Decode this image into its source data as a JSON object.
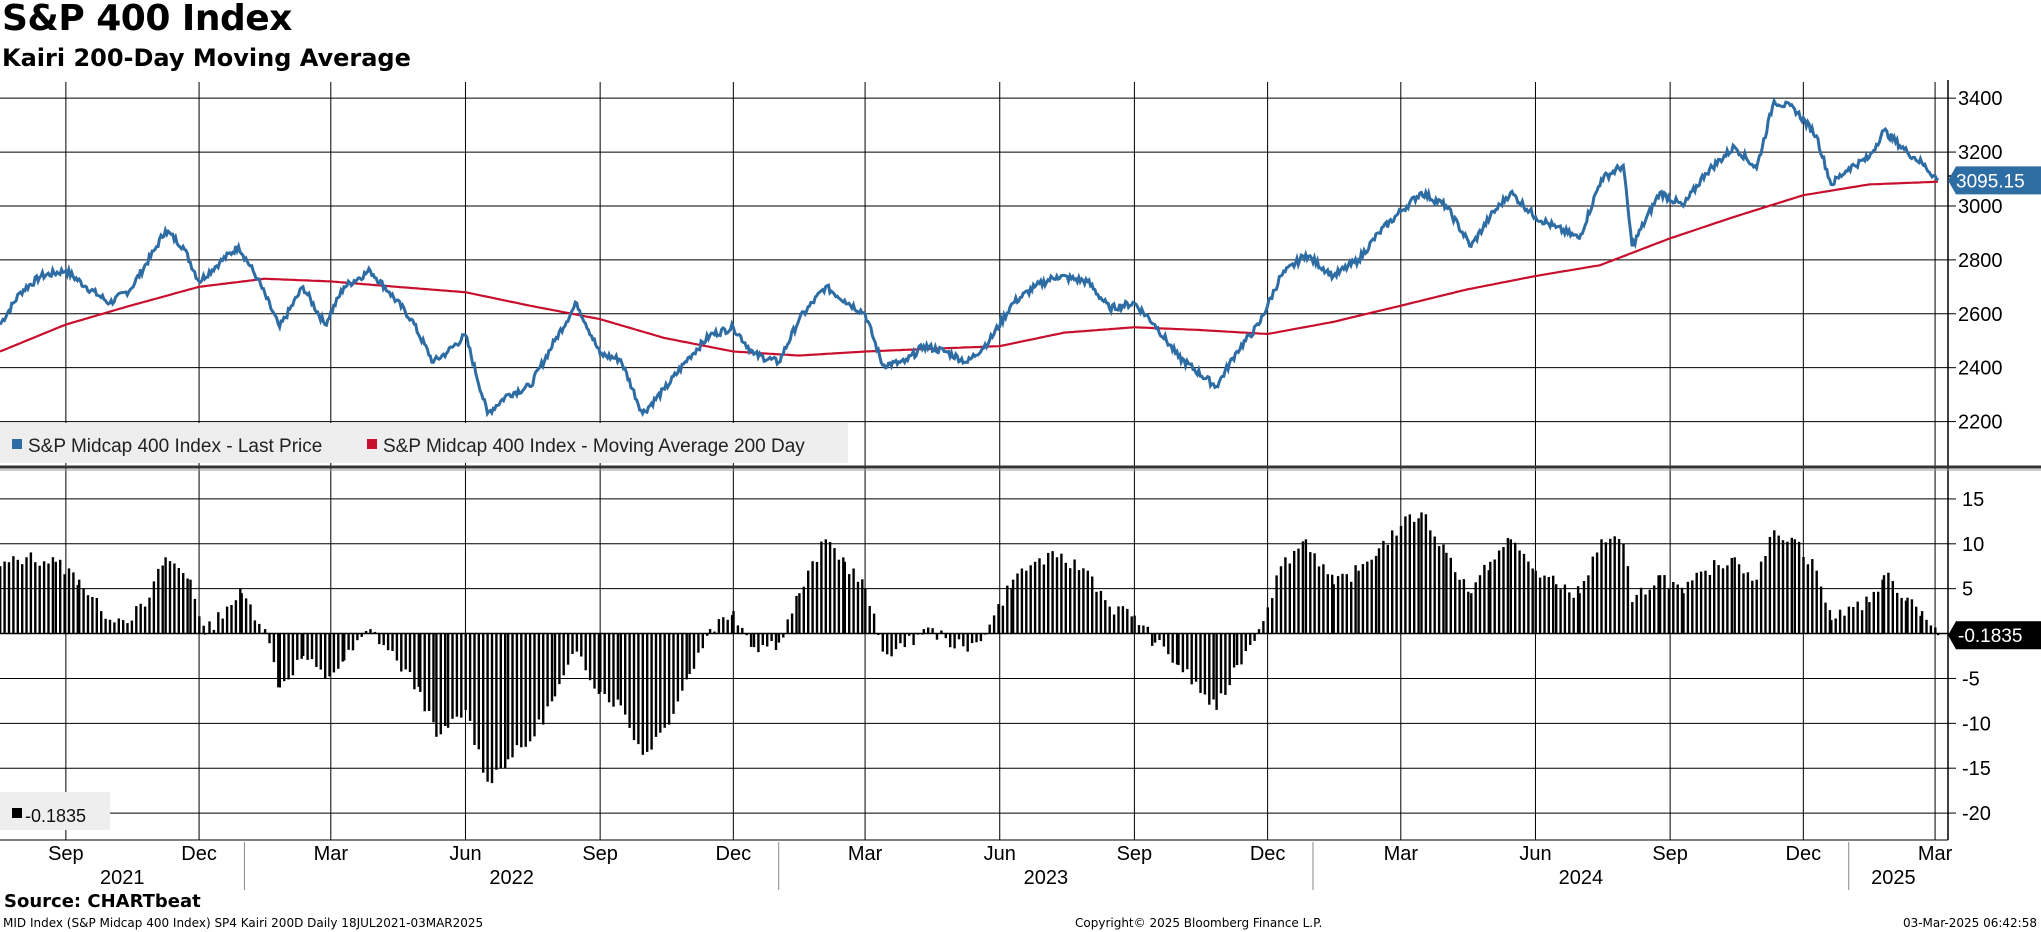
{
  "header": {
    "title": "S&P 400 Index",
    "subtitle": "Kairi 200-Day Moving Average"
  },
  "chart_data": [
    {
      "type": "line",
      "panel": "top",
      "ylim": [
        2050,
        3460
      ],
      "yticks": [
        2200,
        2400,
        2600,
        2800,
        3000,
        3200,
        3400
      ],
      "series": [
        {
          "name": "S&P Midcap 400 Index - Last Price",
          "color": "#2e6ca4",
          "last_value": "3095.15",
          "points": [
            [
              "2021-07-18",
              2560
            ],
            [
              "2021-08-01",
              2680
            ],
            [
              "2021-08-15",
              2740
            ],
            [
              "2021-09-01",
              2760
            ],
            [
              "2021-09-15",
              2700
            ],
            [
              "2021-10-01",
              2640
            ],
            [
              "2021-10-15",
              2690
            ],
            [
              "2021-11-01",
              2840
            ],
            [
              "2021-11-08",
              2910
            ],
            [
              "2021-11-20",
              2850
            ],
            [
              "2021-12-01",
              2720
            ],
            [
              "2021-12-15",
              2790
            ],
            [
              "2021-12-28",
              2850
            ],
            [
              "2022-01-10",
              2730
            ],
            [
              "2022-01-25",
              2550
            ],
            [
              "2022-02-10",
              2700
            ],
            [
              "2022-02-25",
              2560
            ],
            [
              "2022-03-10",
              2700
            ],
            [
              "2022-03-28",
              2760
            ],
            [
              "2022-04-10",
              2680
            ],
            [
              "2022-04-25",
              2580
            ],
            [
              "2022-05-10",
              2420
            ],
            [
              "2022-05-20",
              2460
            ],
            [
              "2022-06-01",
              2520
            ],
            [
              "2022-06-16",
              2230
            ],
            [
              "2022-06-30",
              2300
            ],
            [
              "2022-07-15",
              2330
            ],
            [
              "2022-08-01",
              2500
            ],
            [
              "2022-08-16",
              2640
            ],
            [
              "2022-09-01",
              2450
            ],
            [
              "2022-09-15",
              2430
            ],
            [
              "2022-09-30",
              2230
            ],
            [
              "2022-10-15",
              2320
            ],
            [
              "2022-11-01",
              2440
            ],
            [
              "2022-11-15",
              2520
            ],
            [
              "2022-12-01",
              2550
            ],
            [
              "2022-12-15",
              2450
            ],
            [
              "2023-01-01",
              2420
            ],
            [
              "2023-01-15",
              2580
            ],
            [
              "2023-02-02",
              2700
            ],
            [
              "2023-02-15",
              2650
            ],
            [
              "2023-03-01",
              2600
            ],
            [
              "2023-03-13",
              2410
            ],
            [
              "2023-03-28",
              2420
            ],
            [
              "2023-04-10",
              2480
            ],
            [
              "2023-04-25",
              2460
            ],
            [
              "2023-05-10",
              2420
            ],
            [
              "2023-05-25",
              2500
            ],
            [
              "2023-06-10",
              2640
            ],
            [
              "2023-06-25",
              2700
            ],
            [
              "2023-07-10",
              2740
            ],
            [
              "2023-07-31",
              2720
            ],
            [
              "2023-08-15",
              2620
            ],
            [
              "2023-09-01",
              2640
            ],
            [
              "2023-09-15",
              2560
            ],
            [
              "2023-10-01",
              2440
            ],
            [
              "2023-10-27",
              2330
            ],
            [
              "2023-11-10",
              2460
            ],
            [
              "2023-11-25",
              2560
            ],
            [
              "2023-12-10",
              2740
            ],
            [
              "2023-12-27",
              2820
            ],
            [
              "2024-01-15",
              2740
            ],
            [
              "2024-02-01",
              2800
            ],
            [
              "2024-02-15",
              2900
            ],
            [
              "2024-03-01",
              2980
            ],
            [
              "2024-03-15",
              3050
            ],
            [
              "2024-04-01",
              3000
            ],
            [
              "2024-04-18",
              2850
            ],
            [
              "2024-05-01",
              2960
            ],
            [
              "2024-05-15",
              3050
            ],
            [
              "2024-06-01",
              2960
            ],
            [
              "2024-06-15",
              2920
            ],
            [
              "2024-07-01",
              2880
            ],
            [
              "2024-07-16",
              3100
            ],
            [
              "2024-07-31",
              3150
            ],
            [
              "2024-08-06",
              2850
            ],
            [
              "2024-08-25",
              3050
            ],
            [
              "2024-09-10",
              3000
            ],
            [
              "2024-09-25",
              3120
            ],
            [
              "2024-10-15",
              3220
            ],
            [
              "2024-10-30",
              3140
            ],
            [
              "2024-11-11",
              3390
            ],
            [
              "2024-11-25",
              3360
            ],
            [
              "2024-12-10",
              3260
            ],
            [
              "2024-12-20",
              3080
            ],
            [
              "2025-01-01",
              3140
            ],
            [
              "2025-01-15",
              3180
            ],
            [
              "2025-01-25",
              3280
            ],
            [
              "2025-02-10",
              3200
            ],
            [
              "2025-02-20",
              3160
            ],
            [
              "2025-03-03",
              3095.15
            ]
          ]
        },
        {
          "name": "S&P Midcap 400 Index - Moving Average 200 Day",
          "color": "#c8102e",
          "points": [
            [
              "2021-07-18",
              2460
            ],
            [
              "2021-09-01",
              2560
            ],
            [
              "2021-10-15",
              2630
            ],
            [
              "2021-12-01",
              2700
            ],
            [
              "2022-01-15",
              2730
            ],
            [
              "2022-03-01",
              2720
            ],
            [
              "2022-04-15",
              2700
            ],
            [
              "2022-06-01",
              2680
            ],
            [
              "2022-07-15",
              2630
            ],
            [
              "2022-09-01",
              2580
            ],
            [
              "2022-10-15",
              2510
            ],
            [
              "2022-12-01",
              2460
            ],
            [
              "2023-01-15",
              2445
            ],
            [
              "2023-03-01",
              2460
            ],
            [
              "2023-04-15",
              2470
            ],
            [
              "2023-06-01",
              2480
            ],
            [
              "2023-07-15",
              2530
            ],
            [
              "2023-09-01",
              2550
            ],
            [
              "2023-10-15",
              2540
            ],
            [
              "2023-12-01",
              2525
            ],
            [
              "2024-01-15",
              2570
            ],
            [
              "2024-03-01",
              2630
            ],
            [
              "2024-04-15",
              2690
            ],
            [
              "2024-06-01",
              2740
            ],
            [
              "2024-07-15",
              2780
            ],
            [
              "2024-09-01",
              2880
            ],
            [
              "2024-10-15",
              2960
            ],
            [
              "2024-12-01",
              3040
            ],
            [
              "2025-01-15",
              3080
            ],
            [
              "2025-03-03",
              3090
            ]
          ]
        }
      ]
    },
    {
      "type": "bar",
      "panel": "bottom",
      "ylim": [
        -23,
        18
      ],
      "yticks": [
        15,
        10,
        5,
        0,
        -5,
        -10,
        -15,
        -20
      ],
      "series": [
        {
          "name": "SP4 Kairi 200D",
          "color": "#000000",
          "last_value": "-0.1835",
          "points": [
            [
              "2021-07-18",
              7.5
            ],
            [
              "2021-08-05",
              8.5
            ],
            [
              "2021-08-25",
              8.0
            ],
            [
              "2021-09-10",
              6.0
            ],
            [
              "2021-09-25",
              2.5
            ],
            [
              "2021-10-10",
              1.5
            ],
            [
              "2021-10-25",
              3.0
            ],
            [
              "2021-11-08",
              8.5
            ],
            [
              "2021-11-25",
              6.0
            ],
            [
              "2021-12-05",
              0.0
            ],
            [
              "2021-12-20",
              3.0
            ],
            [
              "2021-12-30",
              4.5
            ],
            [
              "2022-01-15",
              0.5
            ],
            [
              "2022-01-25",
              -6.0
            ],
            [
              "2022-02-10",
              -2.5
            ],
            [
              "2022-02-25",
              -5.0
            ],
            [
              "2022-03-10",
              -3.0
            ],
            [
              "2022-03-28",
              0.5
            ],
            [
              "2022-04-15",
              -3.0
            ],
            [
              "2022-05-01",
              -6.5
            ],
            [
              "2022-05-12",
              -11.5
            ],
            [
              "2022-05-20",
              -10.5
            ],
            [
              "2022-06-01",
              -8.5
            ],
            [
              "2022-06-16",
              -16.5
            ],
            [
              "2022-06-30",
              -14.0
            ],
            [
              "2022-07-15",
              -12.0
            ],
            [
              "2022-08-01",
              -7.0
            ],
            [
              "2022-08-16",
              -2.0
            ],
            [
              "2022-09-01",
              -6.5
            ],
            [
              "2022-09-15",
              -8.0
            ],
            [
              "2022-09-30",
              -13.5
            ],
            [
              "2022-10-15",
              -10.5
            ],
            [
              "2022-11-01",
              -4.5
            ],
            [
              "2022-11-15",
              0.5
            ],
            [
              "2022-12-01",
              2.5
            ],
            [
              "2022-12-15",
              -1.5
            ],
            [
              "2023-01-01",
              -1.0
            ],
            [
              "2023-01-15",
              4.5
            ],
            [
              "2023-02-02",
              10.5
            ],
            [
              "2023-02-15",
              8.0
            ],
            [
              "2023-03-01",
              5.0
            ],
            [
              "2023-03-13",
              -2.0
            ],
            [
              "2023-03-28",
              -1.5
            ],
            [
              "2023-04-10",
              0.5
            ],
            [
              "2023-04-25",
              -0.5
            ],
            [
              "2023-05-10",
              -2.0
            ],
            [
              "2023-05-25",
              1.0
            ],
            [
              "2023-06-10",
              6.0
            ],
            [
              "2023-06-25",
              8.0
            ],
            [
              "2023-07-10",
              8.5
            ],
            [
              "2023-07-31",
              7.0
            ],
            [
              "2023-08-15",
              3.0
            ],
            [
              "2023-09-01",
              2.0
            ],
            [
              "2023-09-15",
              -1.0
            ],
            [
              "2023-10-01",
              -3.5
            ],
            [
              "2023-10-27",
              -8.5
            ],
            [
              "2023-11-10",
              -3.5
            ],
            [
              "2023-11-25",
              0.5
            ],
            [
              "2023-12-10",
              7.5
            ],
            [
              "2023-12-27",
              10.5
            ],
            [
              "2024-01-15",
              5.5
            ],
            [
              "2024-02-01",
              7.0
            ],
            [
              "2024-02-15",
              9.5
            ],
            [
              "2024-03-01",
              12.0
            ],
            [
              "2024-03-15",
              13.5
            ],
            [
              "2024-04-01",
              9.0
            ],
            [
              "2024-04-18",
              4.5
            ],
            [
              "2024-05-01",
              8.0
            ],
            [
              "2024-05-15",
              10.5
            ],
            [
              "2024-06-01",
              7.0
            ],
            [
              "2024-06-15",
              5.5
            ],
            [
              "2024-07-01",
              4.5
            ],
            [
              "2024-07-16",
              10.5
            ],
            [
              "2024-07-31",
              10.0
            ],
            [
              "2024-08-06",
              3.5
            ],
            [
              "2024-08-25",
              6.5
            ],
            [
              "2024-09-10",
              4.5
            ],
            [
              "2024-09-25",
              7.0
            ],
            [
              "2024-10-15",
              8.5
            ],
            [
              "2024-10-30",
              6.0
            ],
            [
              "2024-11-11",
              11.5
            ],
            [
              "2024-11-25",
              10.5
            ],
            [
              "2024-12-10",
              7.0
            ],
            [
              "2024-12-20",
              1.5
            ],
            [
              "2025-01-01",
              3.0
            ],
            [
              "2025-01-15",
              3.5
            ],
            [
              "2025-01-25",
              6.5
            ],
            [
              "2025-02-10",
              4.0
            ],
            [
              "2025-02-20",
              2.5
            ],
            [
              "2025-03-03",
              -0.1835
            ]
          ]
        }
      ]
    }
  ],
  "axes": {
    "date_start": "2021-07-18",
    "date_end": "2025-03-03",
    "months": [
      {
        "label": "Sep",
        "date": "2021-09-01"
      },
      {
        "label": "Dec",
        "date": "2021-12-01"
      },
      {
        "label": "Mar",
        "date": "2022-03-01"
      },
      {
        "label": "Jun",
        "date": "2022-06-01"
      },
      {
        "label": "Sep",
        "date": "2022-09-01"
      },
      {
        "label": "Dec",
        "date": "2022-12-01"
      },
      {
        "label": "Mar",
        "date": "2023-03-01"
      },
      {
        "label": "Jun",
        "date": "2023-06-01"
      },
      {
        "label": "Sep",
        "date": "2023-09-01"
      },
      {
        "label": "Dec",
        "date": "2023-12-01"
      },
      {
        "label": "Mar",
        "date": "2024-03-01"
      },
      {
        "label": "Jun",
        "date": "2024-06-01"
      },
      {
        "label": "Sep",
        "date": "2024-09-01"
      },
      {
        "label": "Dec",
        "date": "2024-12-01"
      },
      {
        "label": "Mar",
        "date": "2025-03-01"
      }
    ],
    "years": [
      {
        "label": "2021",
        "start": "2021-07-18",
        "end": "2022-01-01"
      },
      {
        "label": "2022",
        "start": "2022-01-01",
        "end": "2023-01-01"
      },
      {
        "label": "2023",
        "start": "2023-01-01",
        "end": "2024-01-01"
      },
      {
        "label": "2024",
        "start": "2024-01-01",
        "end": "2025-01-01"
      },
      {
        "label": "2025",
        "start": "2025-01-01",
        "end": "2025-03-03"
      }
    ]
  },
  "legend_top": [
    {
      "label": "S&P Midcap 400 Index - Last Price",
      "color": "#2e6ca4"
    },
    {
      "label": "S&P Midcap 400 Index - Moving Average 200 Day",
      "color": "#c8102e"
    }
  ],
  "legend_bottom": {
    "label": "-0.1835",
    "color": "#000000"
  },
  "footer": {
    "source": "Source: CHARTbeat",
    "left": "MID Index (S&P Midcap 400 Index) SP4 Kairi 200D  Daily 18JUL2021-03MAR2025",
    "center": "Copyright© 2025 Bloomberg Finance L.P.",
    "right": "03-Mar-2025 06:42:58"
  }
}
